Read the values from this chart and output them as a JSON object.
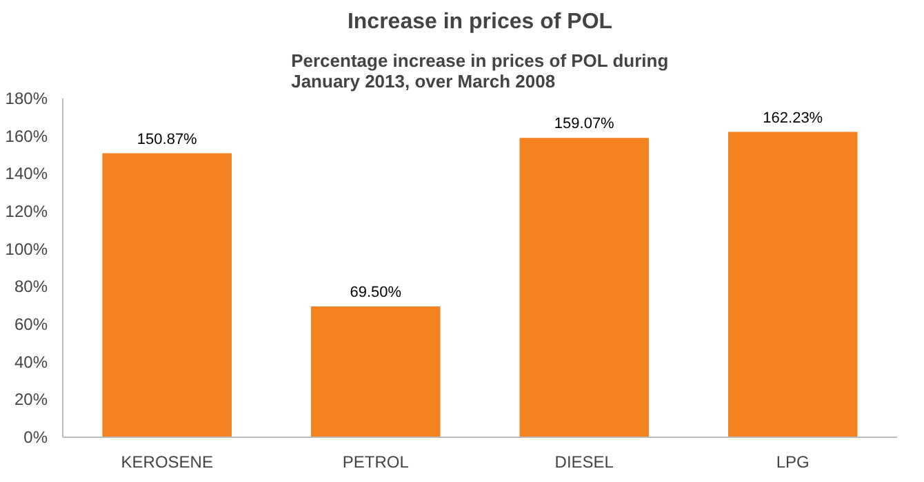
{
  "chart_data": {
    "type": "bar",
    "title": "Increase in prices of POL",
    "subtitle": "Percentage increase in prices of POL during\nJanuary 2013, over March 2008",
    "categories": [
      "KEROSENE",
      "PETROL",
      "DIESEL",
      "LPG"
    ],
    "values": [
      150.87,
      69.5,
      159.07,
      162.23
    ],
    "value_labels": [
      "150.87%",
      "69.50%",
      "159.07%",
      "162.23%"
    ],
    "color": "#f58220",
    "ylim": [
      0,
      180
    ],
    "yticks": [
      {
        "value": 0,
        "label": "0%"
      },
      {
        "value": 20,
        "label": "20%"
      },
      {
        "value": 40,
        "label": "40%"
      },
      {
        "value": 60,
        "label": "60%"
      },
      {
        "value": 80,
        "label": "80%"
      },
      {
        "value": 100,
        "label": "100%"
      },
      {
        "value": 120,
        "label": "120%"
      },
      {
        "value": 140,
        "label": "140%"
      },
      {
        "value": 160,
        "label": "160%"
      },
      {
        "value": 180,
        "label": "180%"
      }
    ],
    "grid": false
  }
}
